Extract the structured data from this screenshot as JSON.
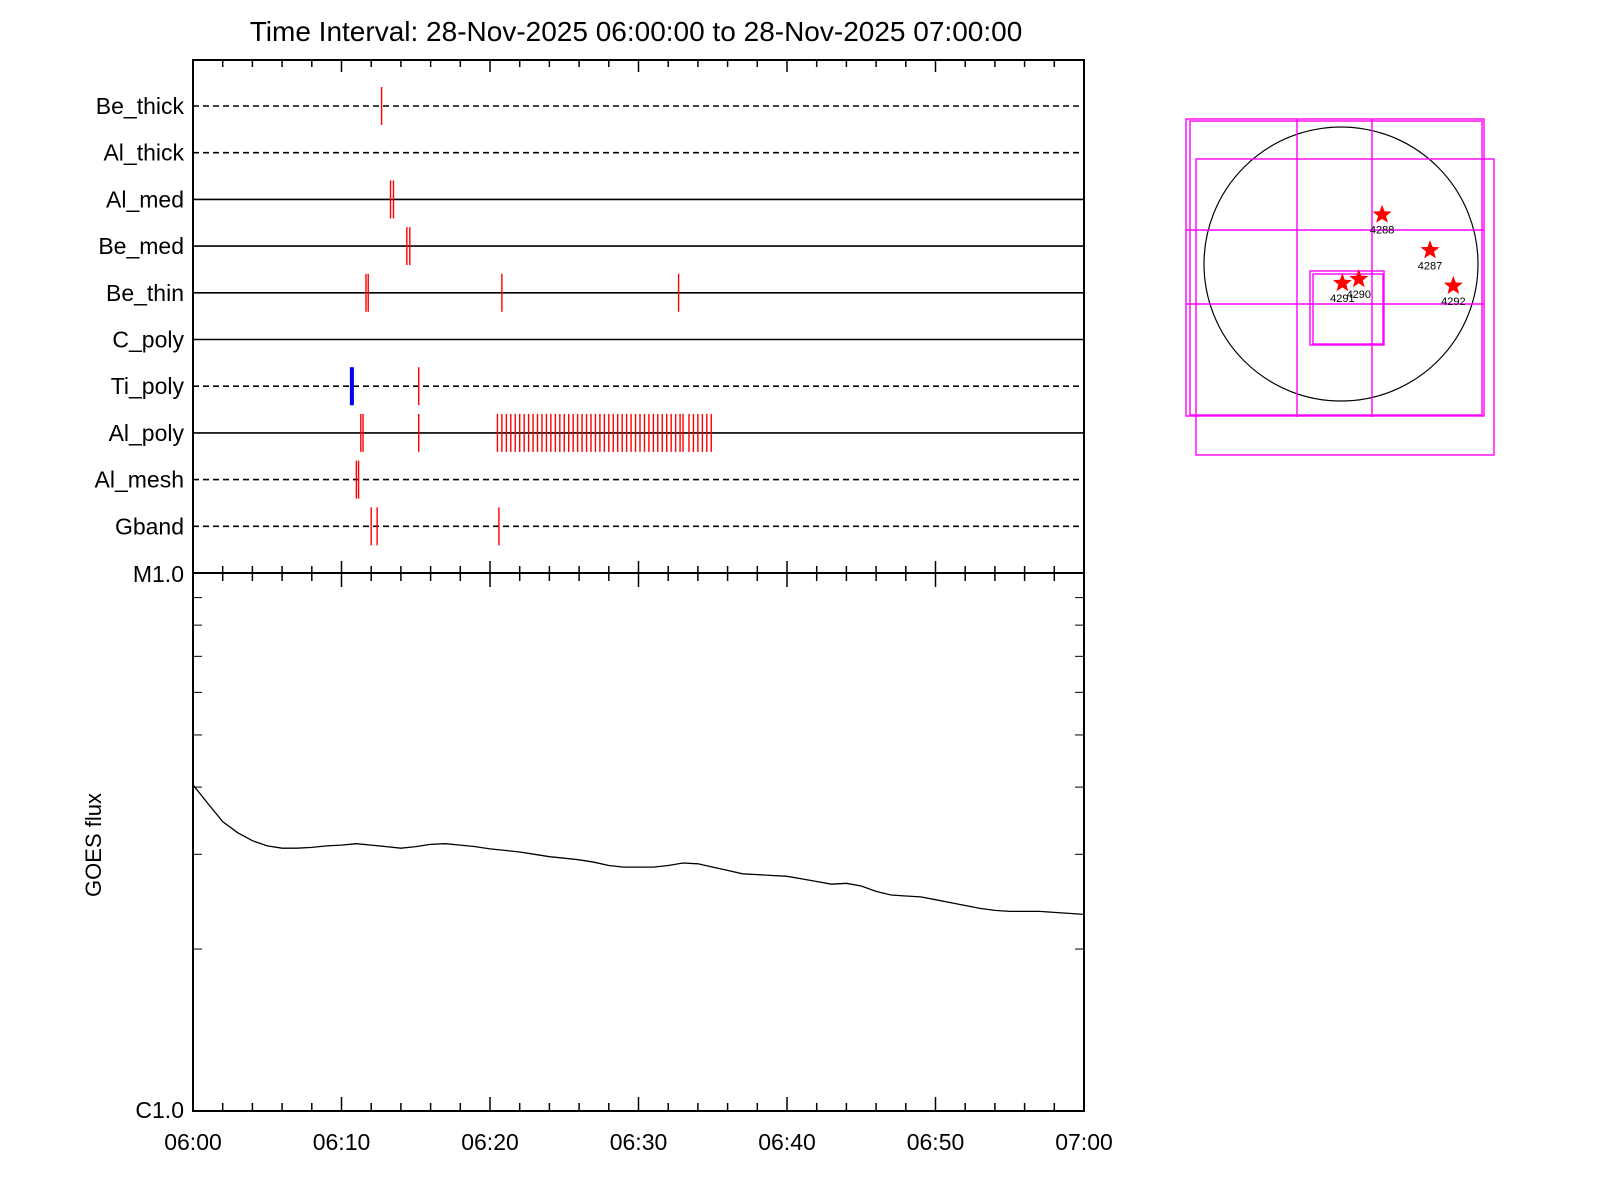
{
  "title": "Time Interval: 28-Nov-2025 06:00:00 to 28-Nov-2025 07:00:00",
  "colors": {
    "exposure": "#ff0000",
    "long_exposure": "#0000ee",
    "goes_curve": "#000000",
    "fov_box": "#ff00ff",
    "sun_limb": "#000000",
    "active_region": "#ff0000"
  },
  "chart_data": [
    {
      "type": "event-timeline",
      "x_range": [
        "06:00",
        "07:00"
      ],
      "xticks": [
        "06:00",
        "06:10",
        "06:20",
        "06:30",
        "06:40",
        "06:50",
        "07:00"
      ],
      "channels": [
        {
          "name": "Be_thick",
          "line": "dashed",
          "events": [
            12.7
          ]
        },
        {
          "name": "Al_thick",
          "line": "dashed",
          "events": []
        },
        {
          "name": "Al_med",
          "line": "solid",
          "events": [
            13.3,
            13.5
          ]
        },
        {
          "name": "Be_med",
          "line": "solid",
          "events": [
            14.4,
            14.6
          ]
        },
        {
          "name": "Be_thin",
          "line": "solid",
          "events": [
            11.65,
            11.8,
            20.8,
            32.7
          ]
        },
        {
          "name": "C_poly",
          "line": "solid",
          "events": []
        },
        {
          "name": "Ti_poly",
          "line": "dashed",
          "events": [
            15.2
          ],
          "long_events": [
            10.7
          ]
        },
        {
          "name": "Al_poly",
          "line": "solid",
          "events": [
            11.3,
            11.45,
            15.2,
            20.5,
            20.8,
            21.1,
            21.4,
            21.7,
            22.0,
            22.3,
            22.6,
            22.9,
            23.2,
            23.5,
            23.8,
            24.1,
            24.4,
            24.7,
            25.0,
            25.3,
            25.6,
            25.9,
            26.2,
            26.5,
            26.8,
            27.1,
            27.4,
            27.7,
            28.0,
            28.3,
            28.6,
            28.9,
            29.2,
            29.5,
            29.8,
            30.1,
            30.4,
            30.7,
            31.0,
            31.3,
            31.6,
            31.9,
            32.2,
            32.5,
            32.8,
            33.0,
            33.4,
            33.7,
            34.0,
            34.3,
            34.6,
            34.9
          ]
        },
        {
          "name": "Al_mesh",
          "line": "dashed",
          "events": [
            11.0,
            11.15
          ]
        },
        {
          "name": "Gband",
          "line": "dashed",
          "events": [
            12.0,
            12.4,
            20.6
          ]
        }
      ]
    },
    {
      "type": "line",
      "ylabel": "GOES flux",
      "yscale": "log",
      "ylim": [
        1e-06,
        1e-05
      ],
      "ytick_labels": [
        "M1.0",
        "C1.0"
      ],
      "xticks": [
        "06:00",
        "06:10",
        "06:20",
        "06:30",
        "06:40",
        "06:50",
        "07:00"
      ],
      "series": [
        {
          "x": [
            0,
            1,
            2,
            3,
            4,
            5,
            6,
            7,
            8,
            9,
            10,
            11,
            12,
            13,
            14,
            15,
            16,
            17,
            18,
            19,
            20,
            21,
            22,
            23,
            24,
            25,
            26,
            27,
            28,
            29,
            30,
            31,
            32,
            33,
            34,
            35,
            36,
            37,
            38,
            39,
            40,
            41,
            42,
            43,
            44,
            45,
            46,
            47,
            48,
            49,
            50,
            51,
            52,
            53,
            54,
            55,
            56,
            57,
            58,
            59,
            60
          ],
          "values": [
            4.04e-06,
            3.73e-06,
            3.45e-06,
            3.29e-06,
            3.18e-06,
            3.11e-06,
            3.08e-06,
            3.08e-06,
            3.09e-06,
            3.11e-06,
            3.12e-06,
            3.14e-06,
            3.12e-06,
            3.1e-06,
            3.08e-06,
            3.1e-06,
            3.13e-06,
            3.14e-06,
            3.12e-06,
            3.1e-06,
            3.07e-06,
            3.05e-06,
            3.03e-06,
            3e-06,
            2.97e-06,
            2.95e-06,
            2.93e-06,
            2.9e-06,
            2.86e-06,
            2.84e-06,
            2.84e-06,
            2.84e-06,
            2.86e-06,
            2.89e-06,
            2.88e-06,
            2.84e-06,
            2.8e-06,
            2.76e-06,
            2.75e-06,
            2.74e-06,
            2.73e-06,
            2.7e-06,
            2.67e-06,
            2.64e-06,
            2.65e-06,
            2.62e-06,
            2.56e-06,
            2.52e-06,
            2.51e-06,
            2.5e-06,
            2.47e-06,
            2.44e-06,
            2.41e-06,
            2.38e-06,
            2.36e-06,
            2.35e-06,
            2.35e-06,
            2.35e-06,
            2.34e-06,
            2.33e-06,
            2.32e-06
          ]
        }
      ]
    },
    {
      "type": "solar-disk-map",
      "active_regions": [
        {
          "label": "4288",
          "x": 0.3,
          "y": 0.36
        },
        {
          "label": "4287",
          "x": 0.65,
          "y": 0.1
        },
        {
          "label": "4290",
          "x": 0.13,
          "y": -0.11
        },
        {
          "label": "4291",
          "x": 0.01,
          "y": -0.14
        },
        {
          "label": "4292",
          "x": 0.82,
          "y": -0.16
        }
      ]
    }
  ]
}
